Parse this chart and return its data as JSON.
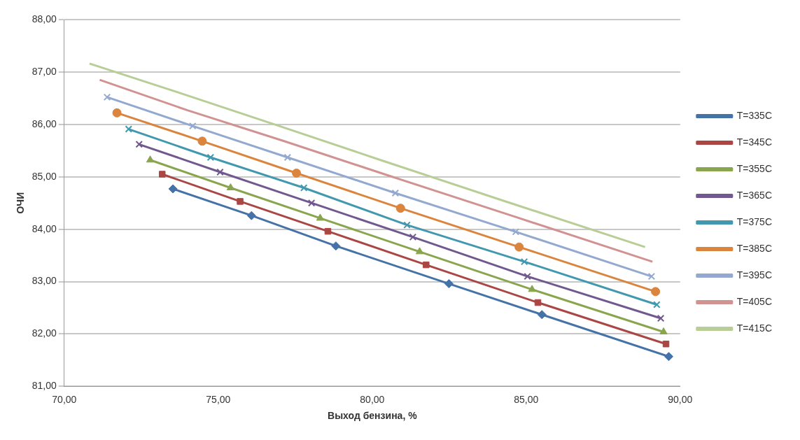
{
  "chart_data": {
    "type": "line",
    "xlabel": "Выход бензина, %",
    "ylabel": "ОЧИ",
    "xlim": [
      70,
      90
    ],
    "ylim": [
      81,
      88
    ],
    "xticks": [
      {
        "value": 70,
        "label": "70,00"
      },
      {
        "value": 75,
        "label": "75,00"
      },
      {
        "value": 80,
        "label": "80,00"
      },
      {
        "value": 85,
        "label": "85,00"
      },
      {
        "value": 90,
        "label": "90,00"
      }
    ],
    "yticks": [
      {
        "value": 81,
        "label": "81,00"
      },
      {
        "value": 82,
        "label": "82,00"
      },
      {
        "value": 83,
        "label": "83,00"
      },
      {
        "value": 84,
        "label": "84,00"
      },
      {
        "value": 85,
        "label": "85,00"
      },
      {
        "value": 86,
        "label": "86,00"
      },
      {
        "value": 87,
        "label": "87,00"
      },
      {
        "value": 88,
        "label": "88,00"
      }
    ],
    "grid": "y",
    "legend": "right",
    "line_style": "solid",
    "series": [
      {
        "name": "T=335C",
        "color": "#4572a7",
        "marker": "diamond",
        "x": [
          73.53,
          76.08,
          78.82,
          82.49,
          85.51,
          89.63
        ],
        "values": [
          84.77,
          84.26,
          83.68,
          82.96,
          82.37,
          81.57
        ]
      },
      {
        "name": "T=345C",
        "color": "#aa4643",
        "marker": "square",
        "x": [
          73.18,
          75.71,
          78.56,
          81.75,
          85.38,
          89.54
        ],
        "values": [
          85.05,
          84.53,
          83.96,
          83.32,
          82.6,
          81.81
        ]
      },
      {
        "name": "T=355C",
        "color": "#89a54e",
        "marker": "triangle",
        "x": [
          72.79,
          75.4,
          78.31,
          81.54,
          85.19,
          89.46
        ],
        "values": [
          85.32,
          84.79,
          84.21,
          83.57,
          82.85,
          82.04
        ]
      },
      {
        "name": "T=365C",
        "color": "#71588f",
        "marker": "cross",
        "x": [
          72.43,
          75.06,
          78.03,
          81.32,
          85.04,
          89.37
        ],
        "values": [
          85.62,
          85.09,
          84.5,
          83.85,
          83.1,
          82.3
        ]
      },
      {
        "name": "T=375C",
        "color": "#4198af",
        "marker": "cross",
        "x": [
          72.09,
          74.75,
          77.78,
          81.13,
          84.94,
          89.24
        ],
        "values": [
          85.91,
          85.37,
          84.79,
          84.08,
          83.38,
          82.56
        ]
      },
      {
        "name": "T=385C",
        "color": "#db843d",
        "marker": "circle",
        "x": [
          71.71,
          74.48,
          77.54,
          80.92,
          84.77,
          89.2
        ],
        "values": [
          86.22,
          85.68,
          85.07,
          84.4,
          83.66,
          82.81
        ]
      },
      {
        "name": "T=395C",
        "color": "#93a9cf",
        "marker": "cross",
        "x": [
          71.39,
          74.17,
          77.25,
          80.75,
          84.66,
          89.07
        ],
        "values": [
          86.52,
          85.97,
          85.37,
          84.69,
          83.95,
          83.1
        ]
      },
      {
        "name": "T=405C",
        "color": "#d19392",
        "marker": "none",
        "x": [
          71.15,
          74.0,
          77.14,
          80.6,
          84.57,
          89.1
        ],
        "values": [
          86.85,
          86.27,
          85.68,
          85.01,
          84.25,
          83.38
        ]
      },
      {
        "name": "T=415C",
        "color": "#b9cd96",
        "marker": "none",
        "x": [
          70.82,
          73.7,
          76.93,
          80.37,
          84.28,
          88.86
        ],
        "values": [
          87.16,
          86.61,
          85.98,
          85.3,
          84.54,
          83.66
        ]
      }
    ]
  }
}
